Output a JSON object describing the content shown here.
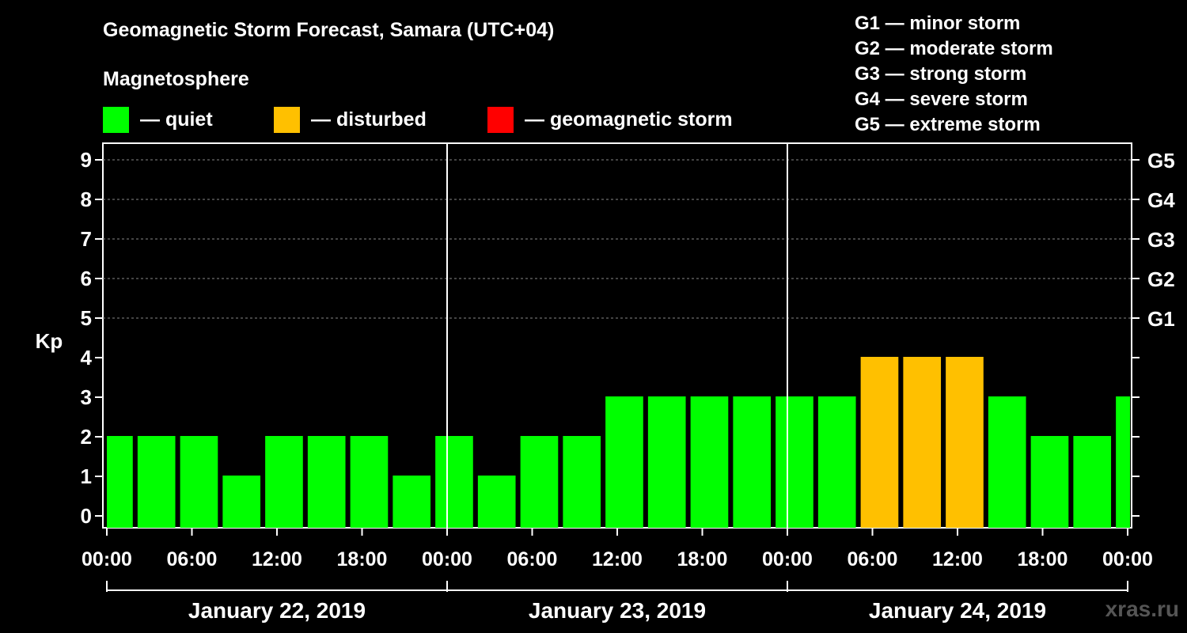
{
  "title": "Geomagnetic Storm Forecast, Samara (UTC+04)",
  "legend": {
    "heading": "Magnetosphere",
    "items": [
      {
        "label": "— quiet",
        "color": "#00ff00"
      },
      {
        "label": "— disturbed",
        "color": "#ffc000"
      },
      {
        "label": "— geomagnetic storm",
        "color": "#ff0000"
      }
    ]
  },
  "g_scale": [
    "G1 — minor storm",
    "G2 — moderate storm",
    "G3 — strong storm",
    "G4 — severe storm",
    "G5 — extreme storm"
  ],
  "watermark": "xras.ru",
  "chart_data": {
    "type": "bar",
    "title": "Geomagnetic Storm Forecast, Samara (UTC+04)",
    "ylabel": "Kp",
    "ylim": [
      0,
      9
    ],
    "yticks": [
      "0",
      "1",
      "2",
      "3",
      "4",
      "5",
      "6",
      "7",
      "8",
      "9"
    ],
    "right_axis_ticks": [
      {
        "kp": 5,
        "label": "G1"
      },
      {
        "kp": 6,
        "label": "G2"
      },
      {
        "kp": 7,
        "label": "G3"
      },
      {
        "kp": 8,
        "label": "G4"
      },
      {
        "kp": 9,
        "label": "G5"
      }
    ],
    "x_tick_labels": [
      "00:00",
      "06:00",
      "12:00",
      "18:00",
      "00:00",
      "06:00",
      "12:00",
      "18:00",
      "00:00",
      "06:00",
      "12:00",
      "18:00",
      "00:00"
    ],
    "x_range_hours": [
      0,
      72
    ],
    "start_offset_hours": 0.5,
    "interval_hours": 3,
    "days": [
      "January 22, 2019",
      "January 23, 2019",
      "January 24, 2019"
    ],
    "values": [
      2,
      2,
      2,
      1,
      2,
      2,
      2,
      1,
      2,
      1,
      2,
      2,
      3,
      3,
      3,
      3,
      3,
      3,
      4,
      4,
      4,
      3,
      2,
      2,
      3
    ],
    "colors": {
      "quiet": "#00ff00",
      "disturbed": "#ffc000",
      "storm": "#ff0000"
    },
    "thresholds": {
      "disturbed": 4,
      "storm": 5
    },
    "grid_from_kp": 5
  }
}
